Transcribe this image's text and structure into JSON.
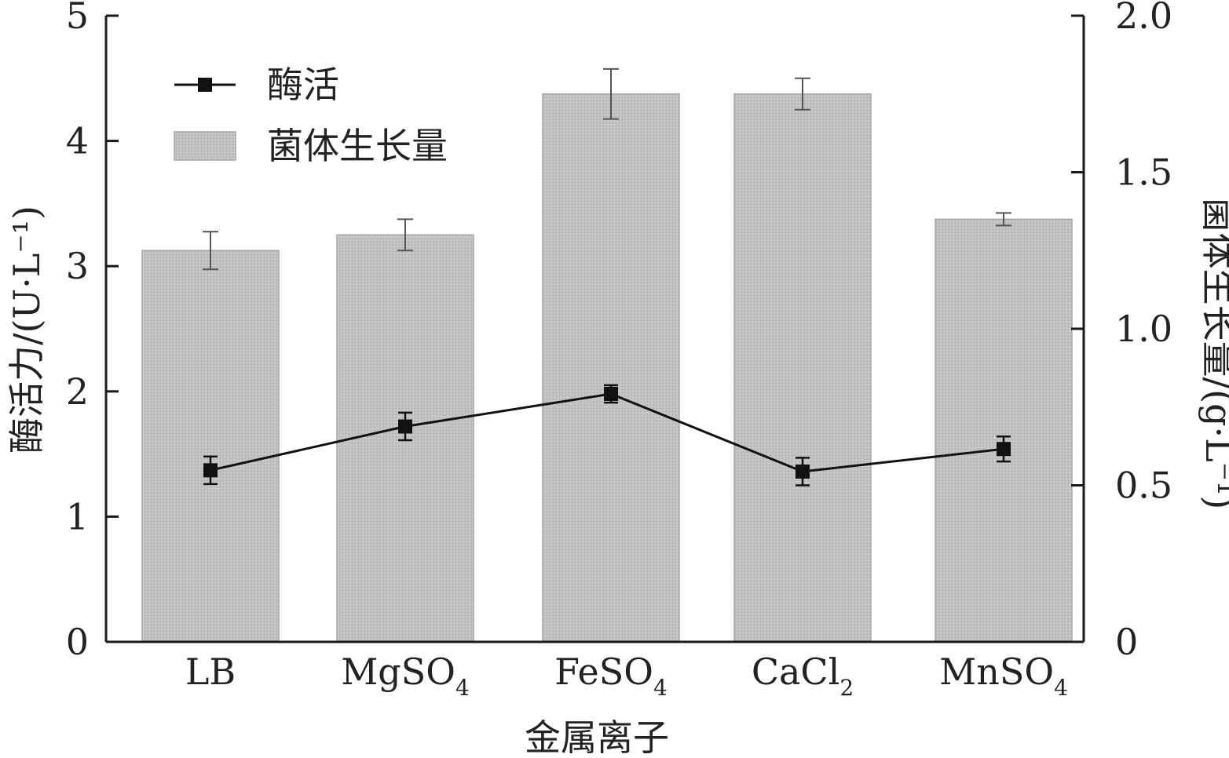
{
  "chart_data": {
    "type": "bar",
    "categories": [
      "LB",
      "MgSO4",
      "FeSO4",
      "CaCl2",
      "MnSO4"
    ],
    "category_labels": [
      {
        "base": "LB",
        "sub": ""
      },
      {
        "base": "MgSO",
        "sub": "4"
      },
      {
        "base": "FeSO",
        "sub": "4"
      },
      {
        "base": "CaCl",
        "sub": "2"
      },
      {
        "base": "MnSO",
        "sub": "4"
      }
    ],
    "xlabel": "金属离子",
    "ylabel_left": "酶活力/(U·L⁻¹)",
    "ylabel_right": "菌体生长量/(g·L⁻¹)",
    "ylim_left": [
      0,
      5
    ],
    "ylim_right": [
      0,
      2.0
    ],
    "yticks_left": [
      "0",
      "1",
      "2",
      "3",
      "4",
      "5"
    ],
    "yticks_right": [
      "0",
      "0.5",
      "1.0",
      "1.5",
      "2.0"
    ],
    "grid": false,
    "legend_position": "top-left",
    "series": [
      {
        "name": "菌体生长量",
        "type": "bar",
        "axis": "right",
        "values": [
          1.25,
          1.3,
          1.75,
          1.75,
          1.35
        ],
        "errors": [
          0.06,
          0.05,
          0.08,
          0.05,
          0.02
        ],
        "color": "#bdbdbd"
      },
      {
        "name": "酶活",
        "type": "line",
        "axis": "left",
        "values": [
          1.37,
          1.72,
          1.98,
          1.36,
          1.54
        ],
        "errors": [
          0.11,
          0.11,
          0.07,
          0.11,
          0.1
        ],
        "color": "#111111"
      }
    ]
  }
}
